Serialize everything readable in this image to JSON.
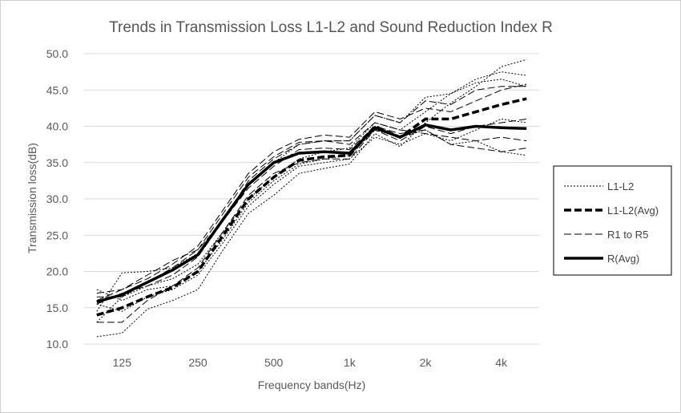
{
  "chart_data": {
    "type": "line",
    "title": "Trends in Transmission Loss L1-L2 and Sound Reduction Index R",
    "xlabel": "Frequency bands(Hz)",
    "ylabel": "Transmission loss(dB)",
    "ylim": [
      10,
      50
    ],
    "ytick_step": 5,
    "yticks": [
      "10.0",
      "15.0",
      "20.0",
      "25.0",
      "30.0",
      "35.0",
      "40.0",
      "45.0",
      "50.0"
    ],
    "x": [
      "100",
      "125",
      "160",
      "200",
      "250",
      "315",
      "400",
      "500",
      "630",
      "800",
      "1k",
      "1.25k",
      "1.6k",
      "2k",
      "2.5k",
      "3.15k",
      "4k",
      "5k"
    ],
    "xtick_labels": [
      {
        "index": 1,
        "label": "125"
      },
      {
        "index": 4,
        "label": "250"
      },
      {
        "index": 7,
        "label": "500"
      },
      {
        "index": 10,
        "label": "1k"
      },
      {
        "index": 13,
        "label": "2k"
      },
      {
        "index": 16,
        "label": "4k"
      }
    ],
    "grid": true,
    "legend_position": "right",
    "legend": [
      {
        "label": "L1-L2",
        "style": "dotted"
      },
      {
        "label": "L1-L2(Avg)",
        "style": "bold-dashed"
      },
      {
        "label": "R1 to R5",
        "style": "dashed"
      },
      {
        "label": "R(Avg)",
        "style": "bold-solid"
      }
    ],
    "series": [
      {
        "name": "L1-L2",
        "style": "dotted",
        "values": [
          11.0,
          11.5,
          14.8,
          16.0,
          17.5,
          23.0,
          28.0,
          30.5,
          33.5,
          34.2,
          34.8,
          39.0,
          37.2,
          40.5,
          43.2,
          45.5,
          48.2,
          49.2
        ]
      },
      {
        "name": "L1-L2",
        "style": "dotted",
        "values": [
          13.0,
          16.5,
          18.0,
          19.0,
          21.0,
          25.5,
          30.0,
          33.0,
          35.5,
          36.5,
          37.0,
          40.5,
          39.5,
          42.0,
          44.5,
          46.0,
          46.5,
          45.5
        ]
      },
      {
        "name": "L1-L2",
        "style": "dotted",
        "values": [
          14.5,
          19.8,
          20.0,
          20.5,
          22.5,
          27.0,
          32.0,
          35.0,
          37.5,
          38.0,
          38.0,
          41.5,
          40.5,
          44.0,
          44.5,
          46.5,
          47.5,
          47.0
        ]
      },
      {
        "name": "L1-L2",
        "style": "dotted",
        "values": [
          15.5,
          14.5,
          16.5,
          17.5,
          19.5,
          24.0,
          29.0,
          32.0,
          34.5,
          35.0,
          35.5,
          38.5,
          37.5,
          39.0,
          38.0,
          39.5,
          41.0,
          40.5
        ]
      },
      {
        "name": "L1-L2",
        "style": "dotted",
        "values": [
          17.5,
          16.0,
          17.5,
          18.0,
          20.0,
          24.5,
          29.5,
          32.5,
          34.8,
          35.5,
          36.0,
          39.5,
          38.5,
          39.5,
          37.5,
          38.0,
          36.5,
          36.0
        ]
      },
      {
        "name": "L1-L2(Avg)",
        "style": "bold-dashed",
        "values": [
          14.0,
          15.0,
          16.5,
          17.8,
          20.0,
          25.0,
          30.0,
          33.0,
          35.3,
          35.8,
          36.0,
          40.0,
          38.5,
          41.0,
          41.0,
          42.0,
          43.0,
          43.8
        ]
      },
      {
        "name": "R1 to R5",
        "style": "dashed",
        "values": [
          13.0,
          13.0,
          16.0,
          18.0,
          20.5,
          25.5,
          30.5,
          33.5,
          35.0,
          35.5,
          35.5,
          39.5,
          38.0,
          40.0,
          39.0,
          40.0,
          40.5,
          41.0
        ]
      },
      {
        "name": "R1 to R5",
        "style": "dashed",
        "values": [
          15.5,
          17.0,
          18.0,
          19.5,
          22.0,
          27.0,
          32.5,
          35.5,
          37.5,
          38.0,
          38.0,
          41.5,
          40.5,
          43.5,
          43.0,
          45.0,
          45.5,
          45.5
        ]
      },
      {
        "name": "R1 to R5",
        "style": "dashed",
        "values": [
          16.0,
          17.5,
          19.0,
          21.0,
          23.5,
          28.5,
          33.5,
          36.5,
          38.2,
          38.8,
          38.5,
          42.0,
          41.0,
          42.5,
          42.0,
          43.5,
          45.0,
          45.8
        ]
      },
      {
        "name": "R1 to R5",
        "style": "dashed",
        "values": [
          16.5,
          16.5,
          18.5,
          20.5,
          23.0,
          28.0,
          33.0,
          35.8,
          37.8,
          38.0,
          37.5,
          40.5,
          39.5,
          39.0,
          38.5,
          38.0,
          38.5,
          38.0
        ]
      },
      {
        "name": "R1 to R5",
        "style": "dashed",
        "values": [
          17.0,
          17.5,
          19.5,
          21.5,
          23.0,
          27.0,
          31.5,
          34.5,
          36.8,
          37.0,
          36.8,
          40.0,
          39.0,
          39.5,
          37.5,
          37.0,
          36.5,
          37.0
        ]
      },
      {
        "name": "R(Avg)",
        "style": "bold-solid",
        "values": [
          15.8,
          16.8,
          18.5,
          20.2,
          22.3,
          27.2,
          32.0,
          35.0,
          36.3,
          36.5,
          36.3,
          39.8,
          38.5,
          40.2,
          39.5,
          40.0,
          39.8,
          39.7
        ]
      }
    ]
  }
}
